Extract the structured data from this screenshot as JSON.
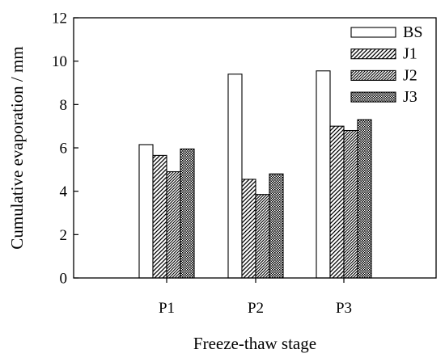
{
  "chart_data": {
    "type": "bar",
    "xlabel": "Freeze-thaw stage",
    "ylabel": "Cumulative evaporation / mm",
    "ylim": [
      0,
      12
    ],
    "yticks": [
      0,
      2,
      4,
      6,
      8,
      10,
      12
    ],
    "categories": [
      "P1",
      "P2",
      "P3"
    ],
    "grid": false,
    "legend_position": "top-right",
    "series": [
      {
        "name": "BS",
        "pattern": "none",
        "values": [
          6.15,
          9.4,
          9.55
        ]
      },
      {
        "name": "J1",
        "pattern": "diagonal-hatch",
        "values": [
          5.65,
          4.55,
          7.0
        ]
      },
      {
        "name": "J2",
        "pattern": "dense-diagonal-hatch",
        "values": [
          4.9,
          3.85,
          6.8
        ]
      },
      {
        "name": "J3",
        "pattern": "dots",
        "values": [
          5.95,
          4.8,
          7.3
        ]
      }
    ]
  }
}
